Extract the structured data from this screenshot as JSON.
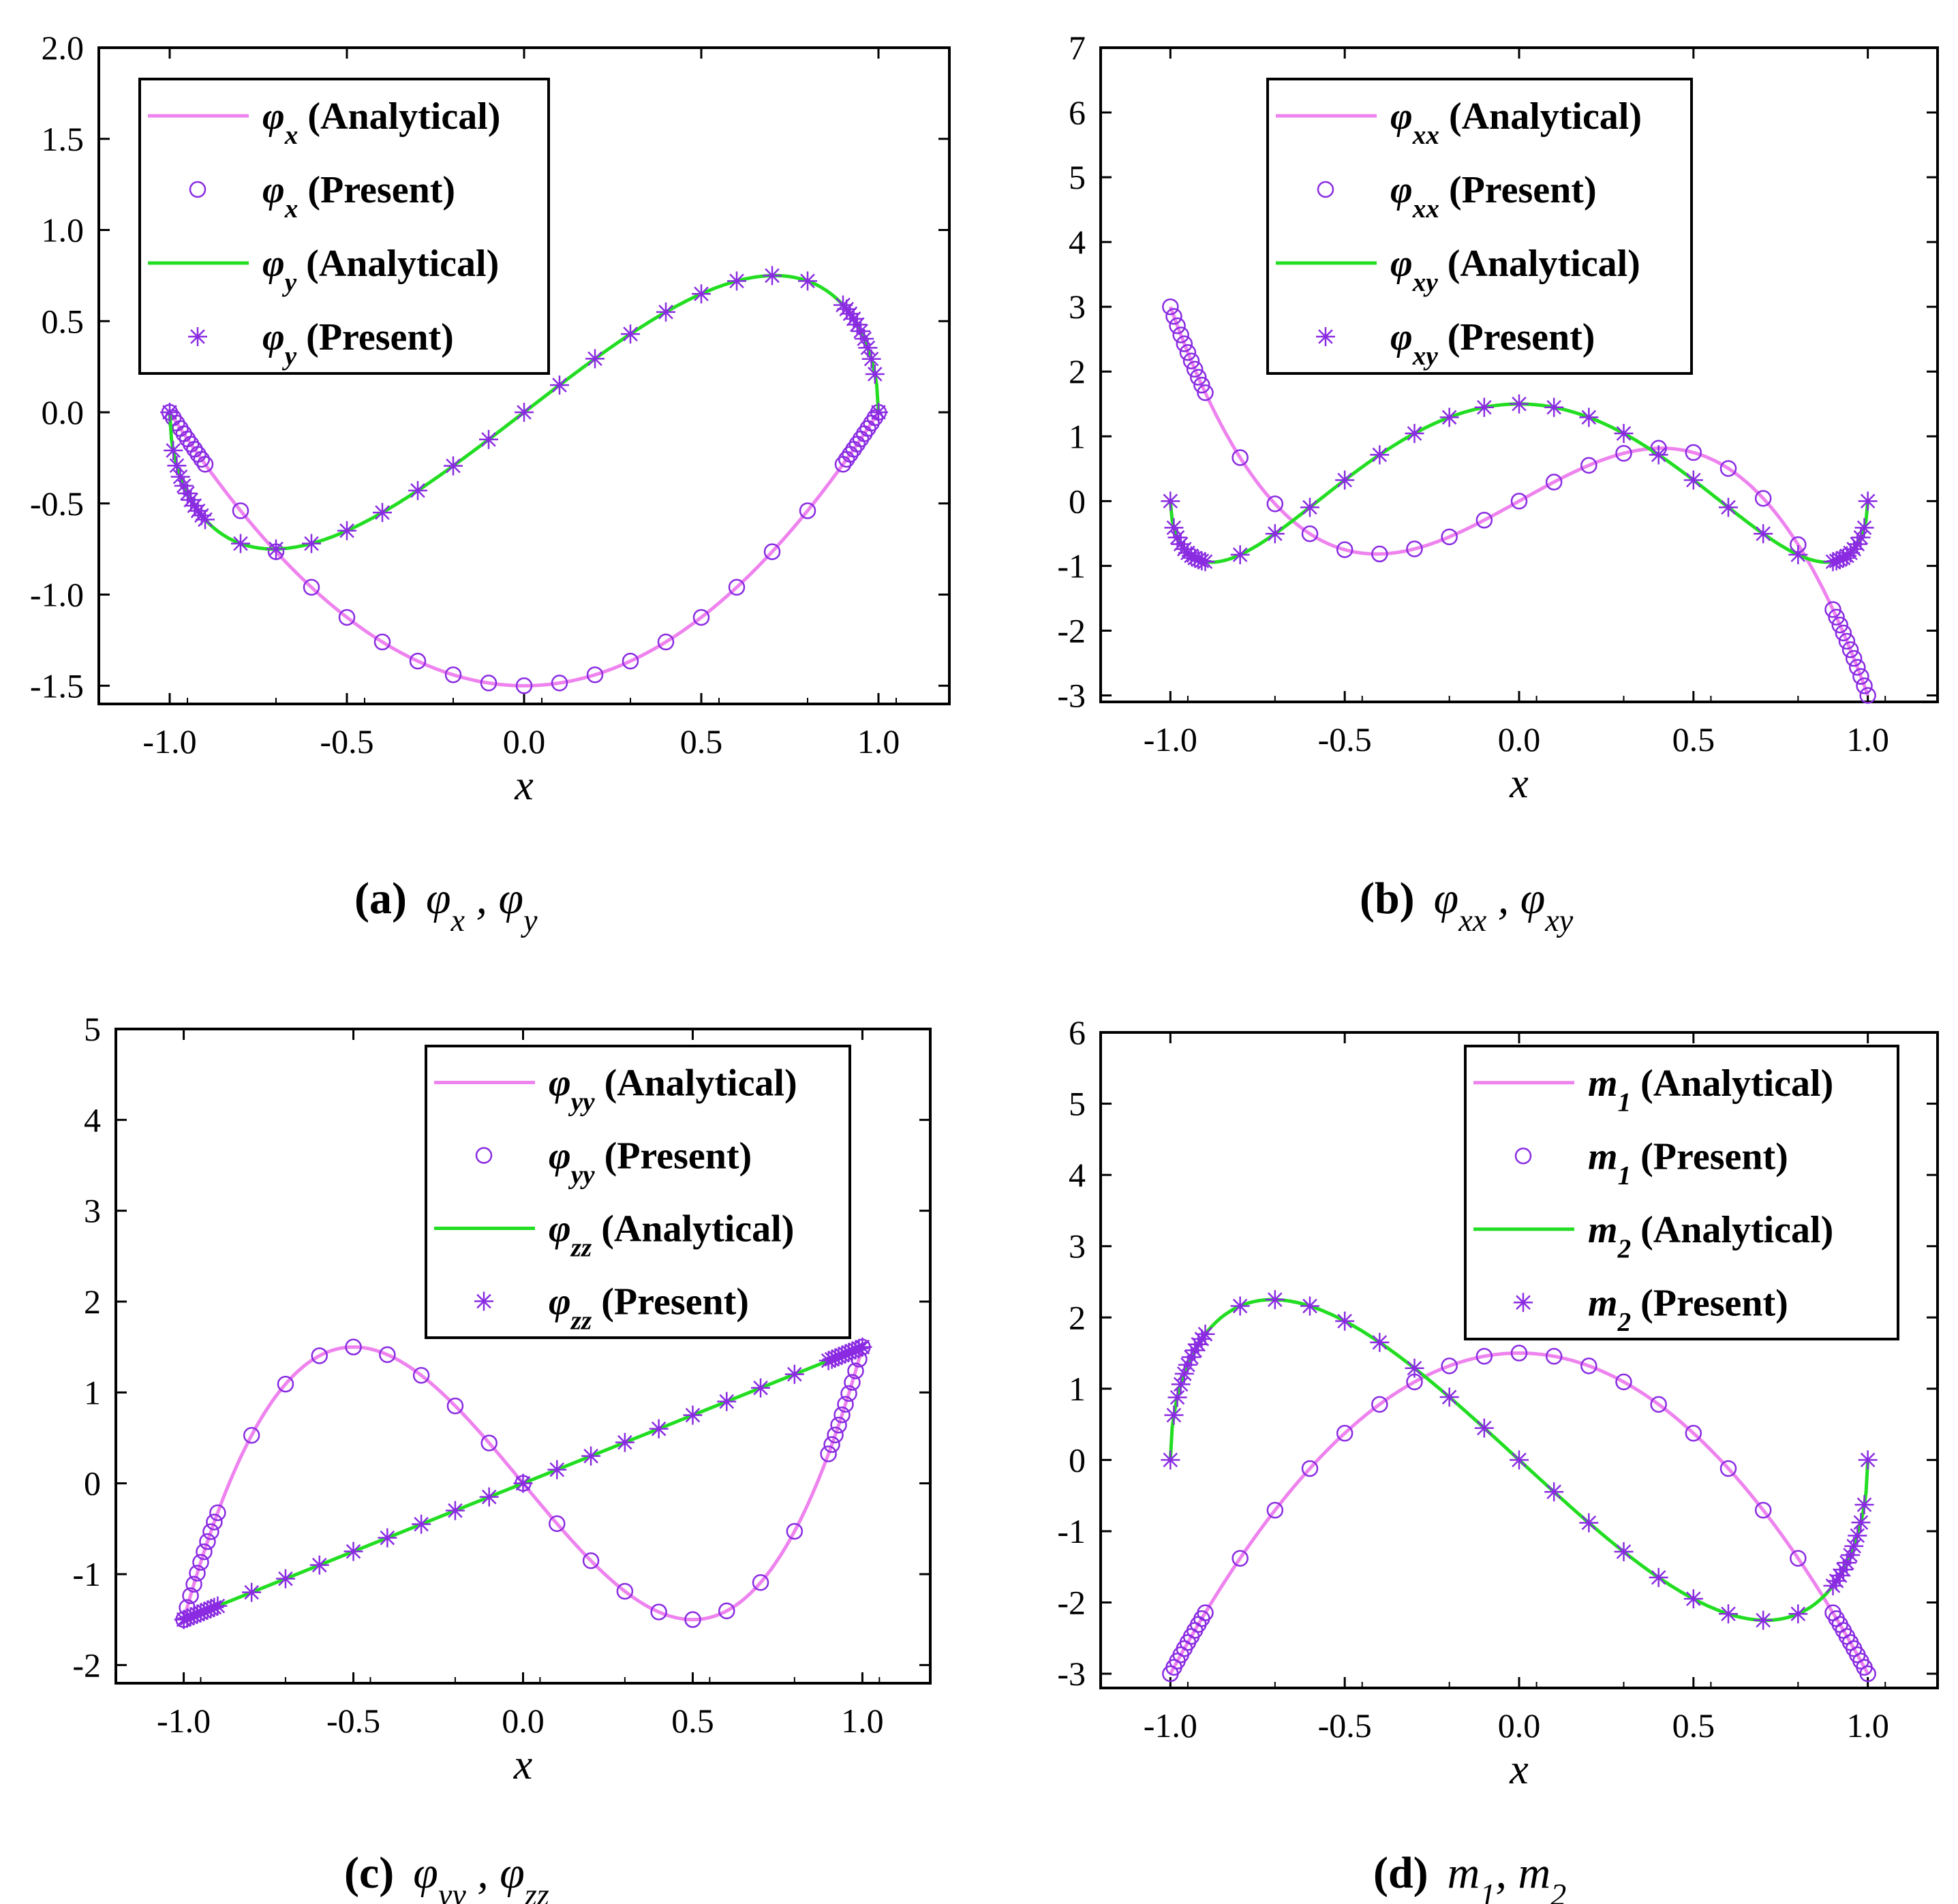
{
  "colors": {
    "analytical_1": "#ee82ee",
    "analytical_2": "#22dd22",
    "marker": "#8a2be2",
    "axis": "#000000"
  },
  "chart_data": [
    {
      "id": "a",
      "type": "line",
      "caption_letter": "(a)",
      "caption_math": "φx , φy",
      "xlabel": "x",
      "ylabel": "",
      "xlim": [
        -1.2,
        1.2
      ],
      "ylim": [
        -1.6,
        2.0
      ],
      "xticks": [
        "-1.0",
        "-0.5",
        "0.0",
        "0.5",
        "1.0"
      ],
      "yticks": [
        "2.0",
        "1.5",
        "1.0",
        "0.5",
        "0.0",
        "-0.5",
        "-1.0",
        "-1.5"
      ],
      "legend_position": "top-left",
      "legend": [
        "φx (Analytical)",
        "φx (Present)",
        "φy (Analytical)",
        "φy (Present)"
      ],
      "series": [
        {
          "name": "φx (Analytical)",
          "style": "line",
          "color": "#ee82ee",
          "func": "phi_x"
        },
        {
          "name": "φx (Present)",
          "style": "circle",
          "func": "phi_x"
        },
        {
          "name": "φy (Analytical)",
          "style": "line",
          "color": "#22dd22",
          "func": "phi_y"
        },
        {
          "name": "φy (Present)",
          "style": "star",
          "func": "phi_y"
        }
      ]
    },
    {
      "id": "b",
      "type": "line",
      "caption_letter": "(b)",
      "caption_math": "φxx , φxy",
      "xlabel": "x",
      "ylabel": "",
      "xlim": [
        -1.2,
        1.2
      ],
      "ylim": [
        -3.1,
        7.0
      ],
      "xticks": [
        "-1.0",
        "-0.5",
        "0.0",
        "0.5",
        "1.0"
      ],
      "yticks": [
        "7",
        "6",
        "5",
        "4",
        "3",
        "2",
        "1",
        "0",
        "-1",
        "-2",
        "-3"
      ],
      "legend_position": "top-left",
      "legend": [
        "φxx (Analytical)",
        "φxx (Present)",
        "φxy (Analytical)",
        "φxy (Present)"
      ],
      "series": [
        {
          "name": "φxx (Analytical)",
          "style": "line",
          "color": "#ee82ee",
          "func": "phi_xx"
        },
        {
          "name": "φxx (Present)",
          "style": "circle",
          "func": "phi_xx"
        },
        {
          "name": "φxy (Analytical)",
          "style": "line",
          "color": "#22dd22",
          "func": "phi_xy"
        },
        {
          "name": "φxy (Present)",
          "style": "star",
          "func": "phi_xy"
        }
      ]
    },
    {
      "id": "c",
      "type": "line",
      "caption_letter": "(c)",
      "caption_math": "φyy , φzz",
      "xlabel": "x",
      "ylabel": "",
      "xlim": [
        -1.2,
        1.2
      ],
      "ylim": [
        -2.2,
        5.0
      ],
      "xticks": [
        "-1.0",
        "-0.5",
        "0.0",
        "0.5",
        "1.0"
      ],
      "yticks": [
        "5",
        "4",
        "3",
        "2",
        "1",
        "0",
        "-1",
        "-2"
      ],
      "legend_position": "top-right",
      "legend": [
        "φyy (Analytical)",
        "φyy (Present)",
        "φzz (Analytical)",
        "φzz (Present)"
      ],
      "series": [
        {
          "name": "φyy (Analytical)",
          "style": "line",
          "color": "#ee82ee",
          "func": "phi_yy"
        },
        {
          "name": "φyy (Present)",
          "style": "circle",
          "func": "phi_yy"
        },
        {
          "name": "φzz (Analytical)",
          "style": "line",
          "color": "#22dd22",
          "func": "phi_zz"
        },
        {
          "name": "φzz (Present)",
          "style": "star",
          "func": "phi_zz"
        }
      ]
    },
    {
      "id": "d",
      "type": "line",
      "caption_letter": "(d)",
      "caption_math": "m1, m2",
      "xlabel": "x",
      "ylabel": "",
      "xlim": [
        -1.2,
        1.2
      ],
      "ylim": [
        -3.2,
        6.0
      ],
      "xticks": [
        "-1.0",
        "-0.5",
        "0.0",
        "0.5",
        "1.0"
      ],
      "yticks": [
        "6",
        "5",
        "4",
        "3",
        "2",
        "1",
        "0",
        "-1",
        "-2",
        "-3"
      ],
      "legend_position": "top-right",
      "legend": [
        "m1 (Analytical)",
        "m1 (Present)",
        "m2  (Analytical)",
        "m2  (Present)"
      ],
      "series": [
        {
          "name": "m1 (Analytical)",
          "style": "line",
          "color": "#ee82ee",
          "func": "m1"
        },
        {
          "name": "m1 (Present)",
          "style": "circle",
          "func": "m1"
        },
        {
          "name": "m2 (Analytical)",
          "style": "line",
          "color": "#22dd22",
          "func": "m2"
        },
        {
          "name": "m2 (Present)",
          "style": "star",
          "func": "m2"
        }
      ]
    }
  ],
  "sample_x": [
    -1.0,
    -0.99,
    -0.98,
    -0.97,
    -0.96,
    -0.95,
    -0.94,
    -0.93,
    -0.92,
    -0.91,
    -0.9,
    -0.8,
    -0.7,
    -0.6,
    -0.5,
    -0.4,
    -0.3,
    -0.2,
    -0.1,
    0.0,
    0.1,
    0.2,
    0.3,
    0.4,
    0.5,
    0.6,
    0.7,
    0.8,
    0.9,
    0.91,
    0.92,
    0.93,
    0.94,
    0.95,
    0.96,
    0.97,
    0.98,
    0.99,
    1.0
  ]
}
